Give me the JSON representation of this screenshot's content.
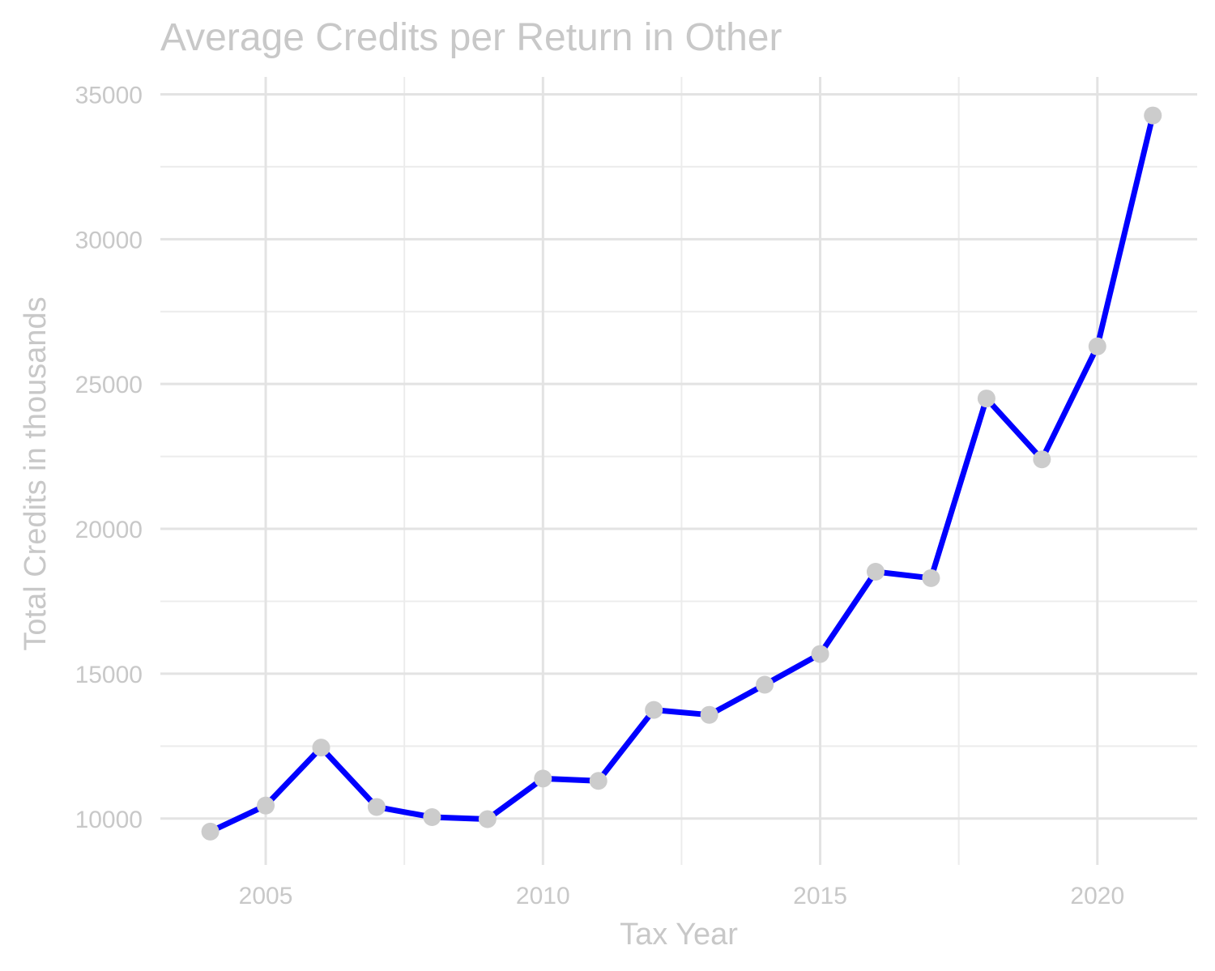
{
  "chart_data": {
    "type": "line",
    "title": "Average Credits per Return in Other",
    "xlabel": "Tax Year",
    "ylabel": "Total Credits in thousands",
    "x_ticks": [
      2005,
      2010,
      2015,
      2020
    ],
    "y_ticks": [
      10000,
      15000,
      20000,
      25000,
      30000,
      35000
    ],
    "xlim": [
      2003.1,
      2021.8
    ],
    "ylim": [
      8400,
      35600
    ],
    "grid": true,
    "legend": "none",
    "series": [
      {
        "line_color": "#0000ff",
        "point_color": "#cccccc",
        "x": [
          2004,
          2005,
          2006,
          2007,
          2008,
          2009,
          2010,
          2011,
          2012,
          2013,
          2014,
          2015,
          2016,
          2017,
          2018,
          2019,
          2020,
          2021
        ],
        "y": [
          9550,
          10450,
          12450,
          10400,
          10050,
          9980,
          11380,
          11300,
          13750,
          13580,
          14620,
          15680,
          18520,
          18300,
          24500,
          22400,
          26300,
          34270
        ]
      }
    ]
  }
}
